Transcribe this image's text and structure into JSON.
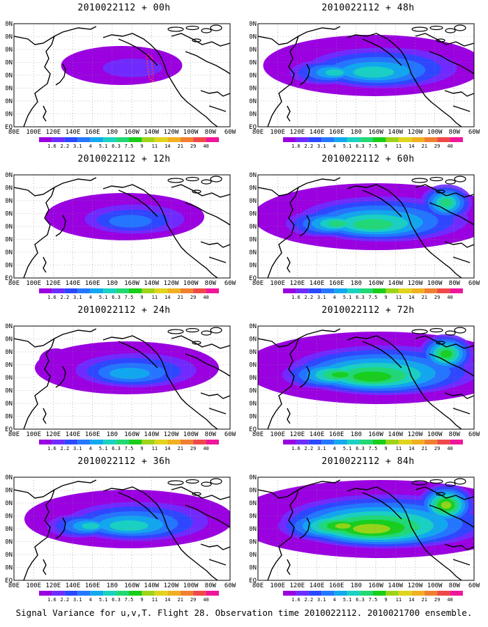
{
  "panels": [
    {
      "title": "2010022112 + 00h",
      "level": 0.15
    },
    {
      "title": "2010022112 + 48h",
      "level": 0.55
    },
    {
      "title": "2010022112 + 12h",
      "level": 0.3
    },
    {
      "title": "2010022112 + 60h",
      "level": 0.65
    },
    {
      "title": "2010022112 + 24h",
      "level": 0.4
    },
    {
      "title": "2010022112 + 72h",
      "level": 0.75
    },
    {
      "title": "2010022112 + 36h",
      "level": 0.5
    },
    {
      "title": "2010022112 + 84h",
      "level": 0.85
    }
  ],
  "latitude_labels": [
    "80N",
    "70N",
    "60N",
    "50N",
    "40N",
    "30N",
    "20N",
    "10N",
    "EQ"
  ],
  "longitude_labels": [
    "80E",
    "100E",
    "120E",
    "140E",
    "160E",
    "180",
    "160W",
    "140W",
    "120W",
    "100W",
    "80W",
    "60W"
  ],
  "colorbar": {
    "labels": [
      "1.6",
      "2.2",
      "3.1",
      "4",
      "5.1",
      "6.3",
      "7.5",
      "9",
      "11",
      "14",
      "21",
      "29",
      "40"
    ],
    "colors": [
      "#9a00e0",
      "#6f2cff",
      "#2b48ff",
      "#2478ff",
      "#12a9ee",
      "#1ad2c0",
      "#22d872",
      "#18ce18",
      "#9ed418",
      "#e0d41c",
      "#f0b020",
      "#f08030",
      "#f04848",
      "#f0169a"
    ]
  },
  "caption": "Signal Variance for u,v,T. Flight 28. Observation time 2010022112. 2010021700 ensemble."
}
